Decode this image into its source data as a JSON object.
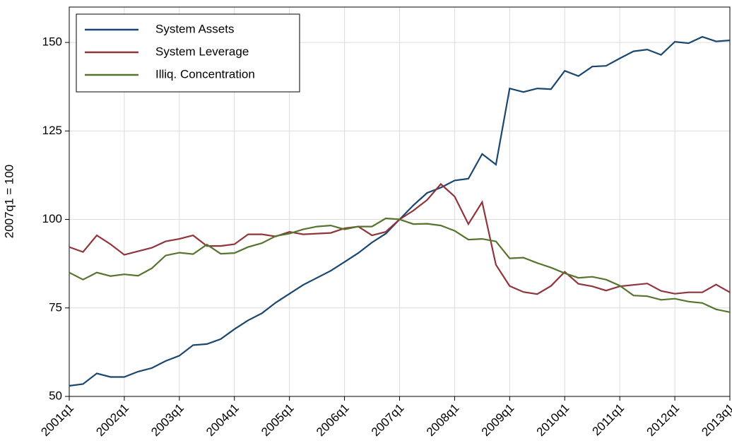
{
  "chart_data": {
    "type": "line",
    "y_label": "2007q1 = 100",
    "categories": [
      "2001q1",
      null,
      null,
      null,
      "2002q1",
      null,
      null,
      null,
      "2003q1",
      null,
      null,
      null,
      "2004q1",
      null,
      null,
      null,
      "2005q1",
      null,
      null,
      null,
      "2006q1",
      null,
      null,
      null,
      "2007q1",
      null,
      null,
      null,
      "2008q1",
      null,
      null,
      null,
      "2009q1",
      null,
      null,
      null,
      "2010q1",
      null,
      null,
      null,
      "2011q1",
      null,
      null,
      null,
      "2012q1",
      null,
      null,
      null,
      "2013q1"
    ],
    "series": [
      {
        "name": "System Assets",
        "color": "#1a476f",
        "values": [
          53,
          53.5,
          56.5,
          55.5,
          55.5,
          57,
          58,
          60,
          61.5,
          64.5,
          64.8,
          66.2,
          69,
          71.5,
          73.5,
          76.5,
          79,
          81.5,
          83.5,
          85.5,
          88,
          90.5,
          93.5,
          96,
          100,
          104,
          107.5,
          109,
          111,
          111.5,
          118.5,
          115.5,
          137,
          136,
          137,
          136.8,
          142,
          140.5,
          143.2,
          143.4,
          145.5,
          147.5,
          148,
          146.5,
          150.2,
          149.8,
          151.6,
          150.3,
          150.6
        ]
      },
      {
        "name": "System Leverage",
        "color": "#90353b",
        "values": [
          92.2,
          90.8,
          95.5,
          93,
          90,
          91,
          92,
          93.8,
          94.5,
          95.5,
          92.5,
          92.5,
          93,
          95.8,
          95.8,
          95.2,
          96.5,
          95.8,
          96,
          96.2,
          97.5,
          98,
          95.5,
          96.5,
          100,
          102.5,
          105.5,
          110,
          106.5,
          98.7,
          104.9,
          87.2,
          81.2,
          79.5,
          78.9,
          81.2,
          85.2,
          81.8,
          81.1,
          79.9,
          81.1,
          81.5,
          81.9,
          79.8,
          79,
          79.4,
          79.4,
          81.6,
          79.4
        ]
      },
      {
        "name": "Illiq. Concentration",
        "color": "#55752f",
        "values": [
          85,
          83,
          85,
          84,
          84.5,
          84.1,
          86.2,
          89.8,
          90.6,
          90.2,
          92.9,
          90.3,
          90.5,
          92.2,
          93.3,
          95.3,
          96,
          97.2,
          98,
          98.3,
          97.2,
          98,
          98,
          100.3,
          100,
          98.7,
          98.8,
          98.3,
          96.8,
          94.3,
          94.5,
          93.8,
          89,
          89.2,
          87.7,
          86.4,
          84.8,
          83.5,
          83.8,
          83,
          81.3,
          78.5,
          78.3,
          77.3,
          77.6,
          76.8,
          76.4,
          74.6,
          73.8
        ]
      }
    ],
    "ylim": [
      50,
      160
    ],
    "yticks": [
      50,
      75,
      100,
      125,
      150
    ],
    "grid": true,
    "legend": "top-left"
  }
}
